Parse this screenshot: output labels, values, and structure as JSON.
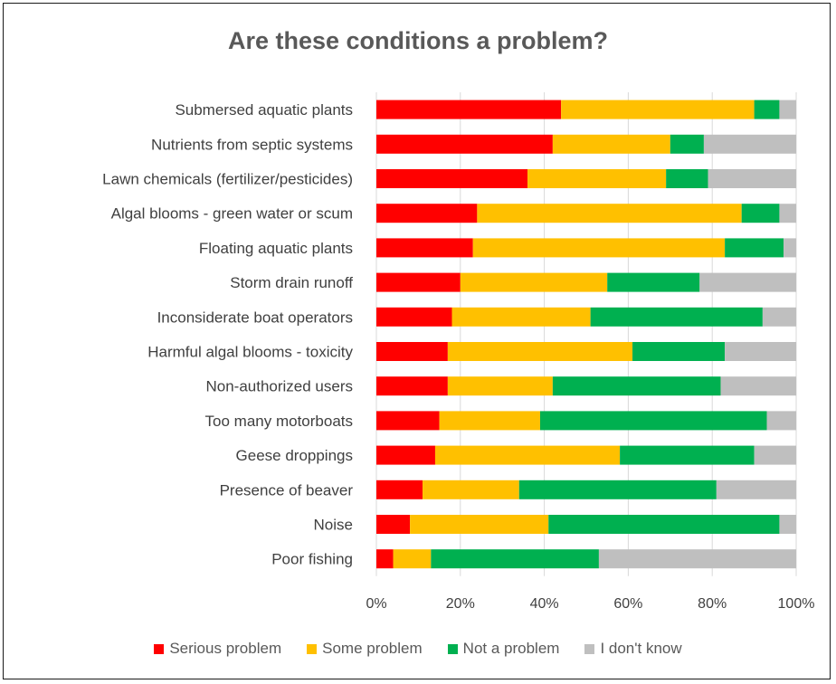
{
  "chart_data": {
    "type": "bar",
    "orientation": "horizontal",
    "stacked": true,
    "title": "Are these conditions a problem?",
    "categories": [
      "Submersed aquatic plants",
      "Nutrients from septic systems",
      "Lawn chemicals (fertilizer/pesticides)",
      "Algal blooms - green water or scum",
      "Floating aquatic plants",
      "Storm drain runoff",
      "Inconsiderate boat operators",
      "Harmful algal blooms - toxicity",
      "Non-authorized users",
      "Too many motorboats",
      "Geese droppings",
      "Presence of beaver",
      "Noise",
      "Poor fishing"
    ],
    "series": [
      {
        "name": "Serious problem",
        "color": "#ff0000",
        "values": [
          44,
          42,
          36,
          24,
          23,
          20,
          18,
          17,
          17,
          15,
          14,
          11,
          8,
          4
        ]
      },
      {
        "name": "Some problem",
        "color": "#ffc000",
        "values": [
          46,
          28,
          33,
          63,
          60,
          35,
          33,
          44,
          25,
          24,
          44,
          23,
          33,
          9
        ]
      },
      {
        "name": "Not a problem",
        "color": "#00b050",
        "values": [
          6,
          8,
          10,
          9,
          14,
          22,
          41,
          22,
          40,
          54,
          32,
          47,
          55,
          40
        ]
      },
      {
        "name": "I don't know",
        "color": "#bfbfbf",
        "values": [
          4,
          22,
          21,
          4,
          3,
          23,
          8,
          17,
          18,
          7,
          10,
          19,
          4,
          47
        ]
      }
    ],
    "x_ticks": [
      "0%",
      "20%",
      "40%",
      "60%",
      "80%",
      "100%"
    ],
    "xlim": [
      0,
      100
    ],
    "grid": true,
    "legend": "bottom"
  }
}
